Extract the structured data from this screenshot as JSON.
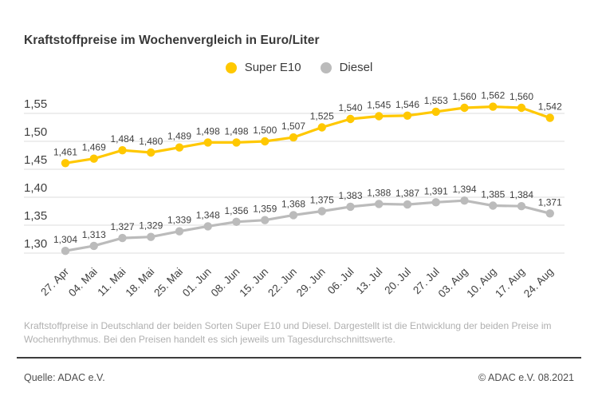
{
  "page": {
    "title": "Kraftstoffpreise im Wochenvergleich in Euro/Liter",
    "footnote": "Kraftstoffpreise in Deutschland der beiden Sorten Super E10 und Diesel. Dargestellt ist die Entwicklung der beiden Preise im Wochenrhythmus. Bei den Preisen handelt es sich jeweils um Tagesdurchschnittswerte.",
    "source_left": "Quelle: ADAC e.V.",
    "source_right": "© ADAC e.V. 08.2021"
  },
  "chart_data": {
    "type": "line",
    "title": "Kraftstoffpreise im Wochenvergleich in Euro/Liter",
    "unit": "Euro/Liter",
    "legend_position": "top-center",
    "grid": true,
    "grid_color": "#dddddd",
    "label_color": "#3f3f3f",
    "decimal_style": "comma",
    "ylim": [
      1.3,
      1.55
    ],
    "y_ticks": [
      "1,55",
      "1,50",
      "1,45",
      "1,40",
      "1,35",
      "1,30"
    ],
    "categories": [
      "27. Apr",
      "04. Mai",
      "11. Mai",
      "18. Mai",
      "25. Mai",
      "01. Jun",
      "08. Jun",
      "15. Jun",
      "22. Jun",
      "29. Jun",
      "06. Jul",
      "13. Jul",
      "20. Jul",
      "27. Jul",
      "03. Aug",
      "10. Aug",
      "17. Aug",
      "24. Aug"
    ],
    "series": [
      {
        "name": "Super E10",
        "color": "#FFC800",
        "values": [
          1.461,
          1.469,
          1.484,
          1.48,
          1.489,
          1.498,
          1.498,
          1.5,
          1.507,
          1.525,
          1.54,
          1.545,
          1.546,
          1.553,
          1.56,
          1.562,
          1.56,
          1.542
        ],
        "labels": [
          "1,461",
          "1,469",
          "1,484",
          "1,480",
          "1,489",
          "1,498",
          "1,498",
          "1,500",
          "1,507",
          "1,525",
          "1,540",
          "1,545",
          "1,546",
          "1,553",
          "1,560",
          "1,562",
          "1,560",
          "1,542"
        ]
      },
      {
        "name": "Diesel",
        "color": "#bbbbbb",
        "values": [
          1.304,
          1.313,
          1.327,
          1.329,
          1.339,
          1.348,
          1.356,
          1.359,
          1.368,
          1.375,
          1.383,
          1.388,
          1.387,
          1.391,
          1.394,
          1.385,
          1.384,
          1.371
        ],
        "labels": [
          "1,304",
          "1,313",
          "1,327",
          "1,329",
          "1,339",
          "1,348",
          "1,356",
          "1,359",
          "1,368",
          "1,375",
          "1,383",
          "1,388",
          "1,387",
          "1,391",
          "1,394",
          "1,385",
          "1,384",
          "1,371"
        ]
      }
    ]
  }
}
